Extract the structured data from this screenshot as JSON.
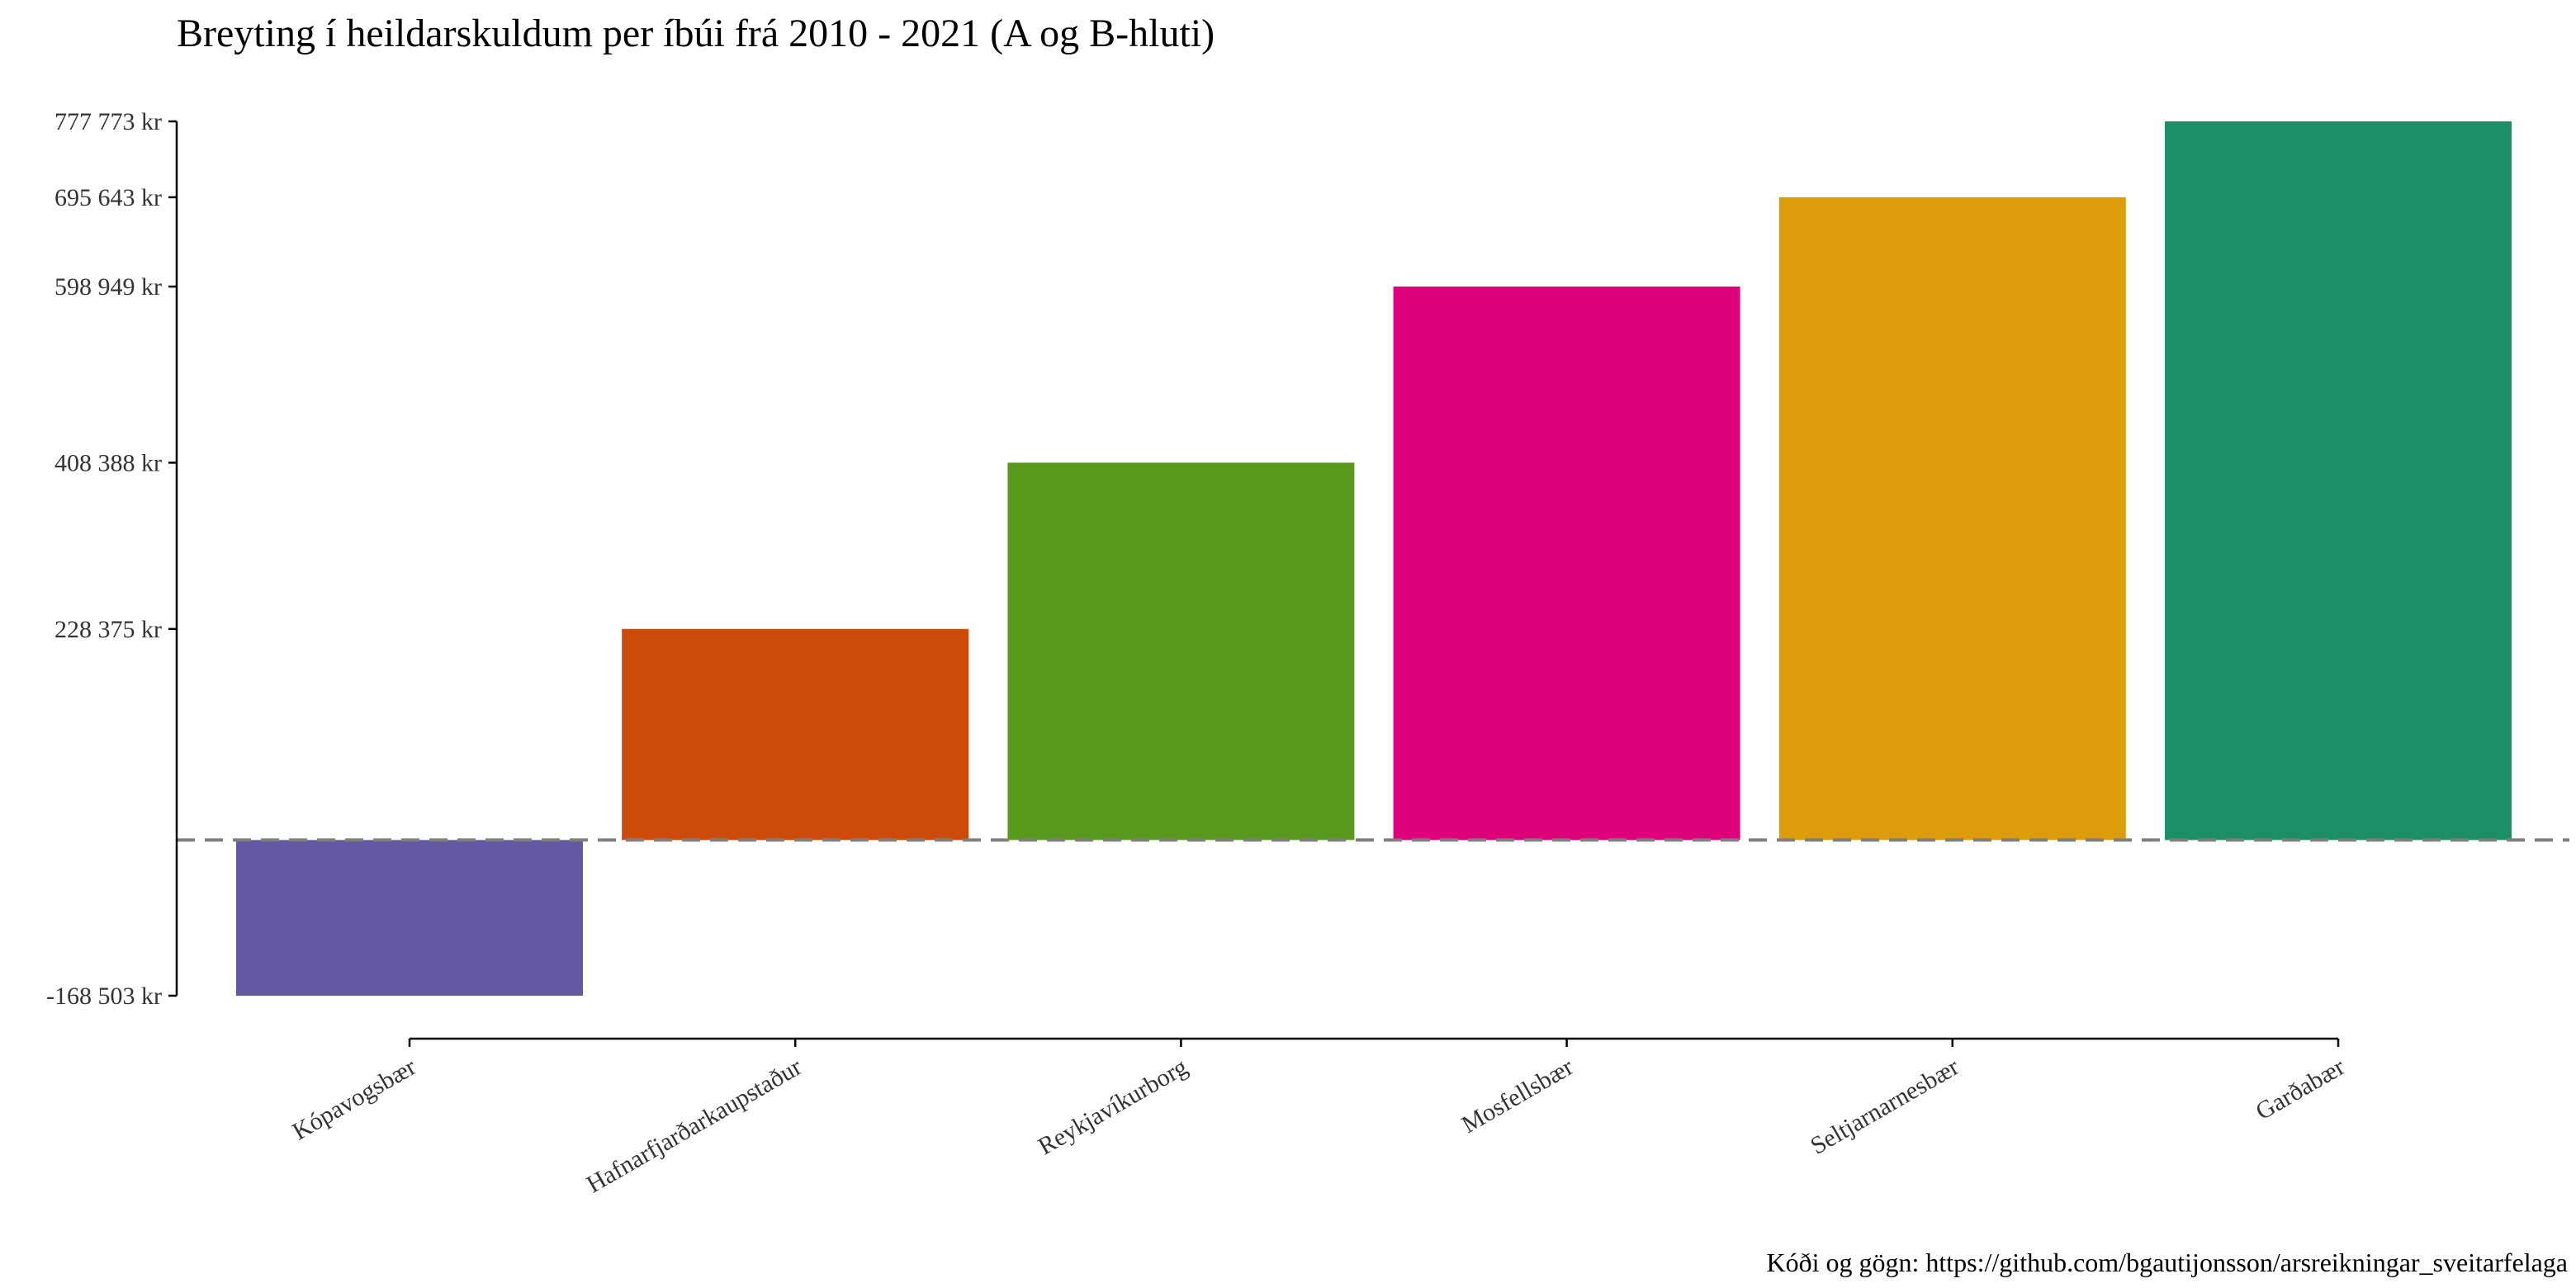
{
  "chart_data": {
    "type": "bar",
    "title": "Breyting í heildarskuldum per íbúi frá 2010 - 2021 (A og B-hluti)",
    "caption": "Kóði og gögn: https://github.com/bgautijonsson/arsreikningar_sveitarfelaga",
    "xlabel": "",
    "ylabel": "",
    "categories": [
      "Kópavogsbær",
      "Hafnarfjarðarkaupstaður",
      "Reykjavíkurborg",
      "Mosfellsbær",
      "Seltjarnarnesbær",
      "Garðabær"
    ],
    "values": [
      -168503,
      228375,
      408388,
      598949,
      695643,
      777773
    ],
    "colors": [
      "#6359A3",
      "#CC4B0B",
      "#58981D",
      "#DE007A",
      "#DD9C0B",
      "#1C8F66"
    ],
    "ytick_values": [
      -168503,
      228375,
      408388,
      598949,
      695643,
      777773
    ],
    "ytick_labels": [
      "-168 503 kr",
      "228 375 kr",
      "408 388 kr",
      "598 949 kr",
      "695 643 kr",
      "777 773 kr"
    ],
    "ylim": [
      -168503,
      777773
    ],
    "reference_line": 0,
    "grid": false,
    "legend": "none"
  }
}
